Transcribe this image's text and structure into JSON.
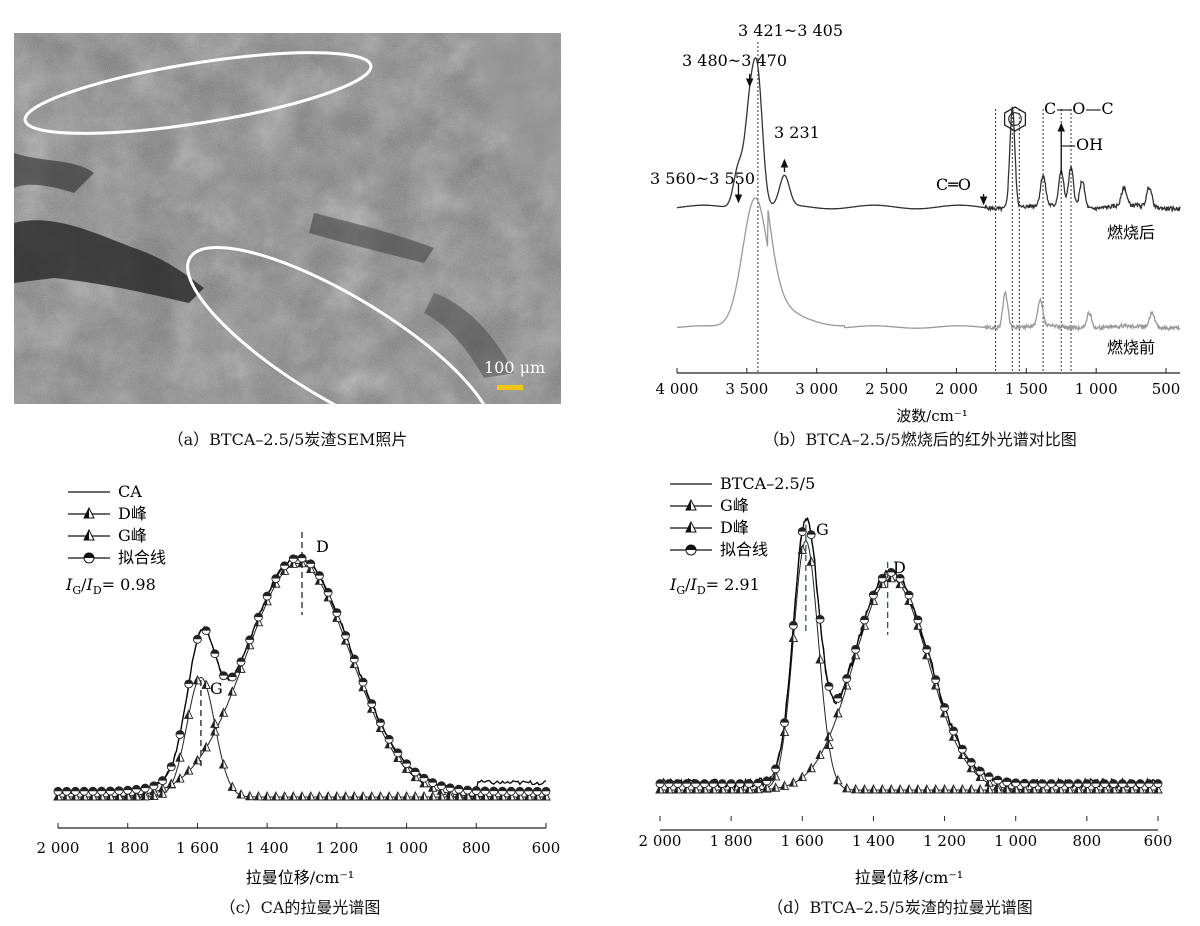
{
  "panels": {
    "a": {
      "caption": "（a）BTCA–2.5/5炭渣SEM照片",
      "scale_label": "100 μm"
    },
    "b": {
      "caption": "（b）BTCA–2.5/5燃烧后的红外光谱对比图",
      "xlabel": "波数/cm⁻¹",
      "labels": {
        "after": "燃烧后",
        "before": "燃烧前",
        "peak_3421": "3 421~3 405",
        "peak_3480": "3 480~3 470",
        "peak_3231": "3 231",
        "peak_3560": "3 560~3 550",
        "co": "C═O",
        "coc": "C—O—C",
        "oh": "—OH"
      }
    },
    "c": {
      "caption": "（c）CA的拉曼光谱图",
      "xlabel": "拉曼位移/cm⁻¹",
      "legend": [
        "CA",
        "D峰",
        "G峰",
        "拟合线"
      ],
      "ratio_main": "I",
      "ratio_sub_g": "G",
      "ratio_sep": "/",
      "ratio_sub_d": "D",
      "ratio_value": "= 0.98",
      "peak_d": "D",
      "peak_g": "G"
    },
    "d": {
      "caption": "（d）BTCA–2.5/5炭渣的拉曼光谱图",
      "xlabel": "拉曼位移/cm⁻¹",
      "legend": [
        "BTCA–2.5/5",
        "G峰",
        "D峰",
        "拟合线"
      ],
      "ratio_main": "I",
      "ratio_sub_g": "G",
      "ratio_sep": "/",
      "ratio_sub_d": "D",
      "ratio_value": "= 2.91",
      "peak_g": "G",
      "peak_d": "D"
    }
  },
  "chart_data": [
    {
      "id": "ir",
      "type": "line",
      "xlabel": "波数/cm⁻¹",
      "xlim": [
        4000,
        400
      ],
      "x_ticks": [
        4000,
        3500,
        3000,
        2500,
        2000,
        1500,
        1000,
        500
      ],
      "x_tick_labels": [
        "4 000",
        "3 500",
        "3 000",
        "2 500",
        "2 000",
        "1 500",
        "1 000",
        "500"
      ],
      "dotted_lines": [
        3421,
        1720,
        1600,
        1550,
        1380,
        1250,
        1180
      ],
      "series": [
        {
          "name": "燃烧后",
          "color": "#333333",
          "peaks": [
            [
              3560,
              40
            ],
            [
              3480,
              90
            ],
            [
              3421,
              120
            ],
            [
              3231,
              30
            ],
            [
              1600,
              100
            ],
            [
              1380,
              30
            ],
            [
              1250,
              35
            ],
            [
              1180,
              40
            ],
            [
              1100,
              28
            ],
            [
              800,
              18
            ],
            [
              620,
              20
            ]
          ],
          "base": 6
        },
        {
          "name": "燃烧前",
          "color": "#999999",
          "peaks": [
            [
              3440,
              130
            ],
            [
              1650,
              35
            ],
            [
              1400,
              25
            ],
            [
              1050,
              15
            ],
            [
              600,
              15
            ]
          ],
          "base": 4
        }
      ]
    },
    {
      "id": "raman_ca",
      "type": "line",
      "xlabel": "拉曼位移/cm⁻¹",
      "xlim": [
        2000,
        600
      ],
      "x_ticks": [
        2000,
        1800,
        1600,
        1400,
        1200,
        1000,
        800,
        600
      ],
      "x_tick_labels": [
        "2 000",
        "1 800",
        "1 600",
        "1 400",
        "1 200",
        "1 000",
        "800",
        "600"
      ],
      "d_peak": {
        "center": 1310,
        "height": 0.82,
        "width": 150
      },
      "g_peak": {
        "center": 1590,
        "height": 0.42,
        "width": 40
      },
      "ratio_ig_id": 0.98,
      "peak_markers": {
        "D": 1300,
        "G": 1590
      }
    },
    {
      "id": "raman_btca",
      "type": "line",
      "xlabel": "拉曼位移/cm⁻¹",
      "xlim": [
        2000,
        600
      ],
      "x_ticks": [
        2000,
        1800,
        1600,
        1400,
        1200,
        1000,
        800,
        600
      ],
      "x_tick_labels": [
        "2 000",
        "1 800",
        "1 600",
        "1 400",
        "1 200",
        "1 000",
        "800",
        "600"
      ],
      "g_peak": {
        "center": 1590,
        "height": 0.78,
        "width": 35
      },
      "d_peak": {
        "center": 1350,
        "height": 0.66,
        "width": 105
      },
      "ratio_ig_id": 2.91,
      "peak_markers": {
        "G": 1590,
        "D": 1360
      }
    }
  ]
}
